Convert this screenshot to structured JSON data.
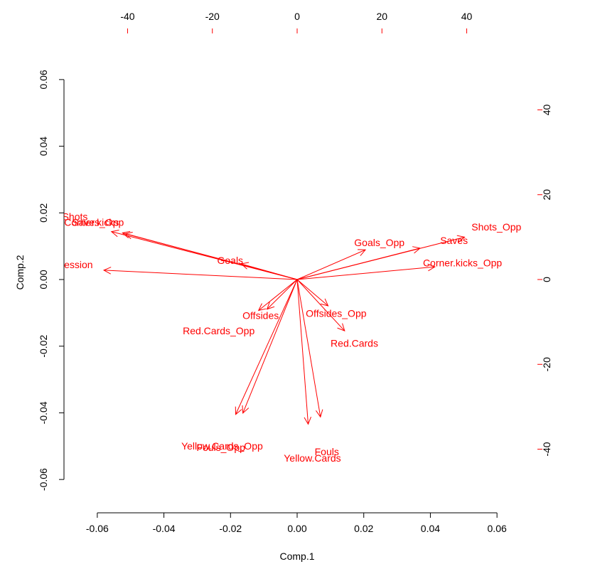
{
  "chart_data": {
    "type": "biplot",
    "xlabel": "Comp.1",
    "ylabel": "Comp.2",
    "xlim": [
      -0.07,
      0.07
    ],
    "ylim": [
      -0.07,
      0.07
    ],
    "x_ticks": [
      -0.06,
      -0.04,
      -0.02,
      0.0,
      0.02,
      0.04,
      0.06
    ],
    "x_tick_labels": [
      "-0.06",
      "-0.04",
      "-0.02",
      "0.00",
      "0.02",
      "0.04",
      "0.06"
    ],
    "y_ticks": [
      -0.06,
      -0.04,
      -0.02,
      0.0,
      0.02,
      0.04,
      0.06
    ],
    "y_tick_labels": [
      "-0.06",
      "-0.04",
      "-0.02",
      "0.00",
      "0.02",
      "0.04",
      "0.06"
    ],
    "top_axis_lim": [
      -55,
      55
    ],
    "top_ticks": [
      -40,
      -20,
      0,
      20,
      40
    ],
    "top_tick_labels": [
      "-40",
      "-20",
      "0",
      "20",
      "40"
    ],
    "right_axis_lim": [
      -55,
      55
    ],
    "right_ticks": [
      -40,
      -20,
      0,
      20,
      40
    ],
    "right_tick_labels": [
      "-40",
      "-20",
      "0",
      "20",
      "40"
    ],
    "loading_color": "#ff0000",
    "loadings": [
      {
        "name": "Shots",
        "x": -43.8,
        "y": 11.3,
        "lx": -52.4,
        "ly": 14.8
      },
      {
        "name": "Corner.kicks",
        "x": -41.2,
        "y": 11.0,
        "lx": -48.5,
        "ly": 13.5
      },
      {
        "name": "Saves_Opp",
        "x": -40.6,
        "y": 10.8,
        "lx": -47.0,
        "ly": 13.5
      },
      {
        "name": "Possession",
        "x": -45.6,
        "y": 2.2,
        "lx": -54.2,
        "ly": 3.5
      },
      {
        "name": "Goals",
        "x": -13.2,
        "y": 3.7,
        "lx": -15.8,
        "ly": 4.5
      },
      {
        "name": "Goals_Opp",
        "x": 16.1,
        "y": 7.0,
        "lx": 19.4,
        "ly": 8.7
      },
      {
        "name": "Saves",
        "x": 29.0,
        "y": 7.4,
        "lx": 37.0,
        "ly": 9.2
      },
      {
        "name": "Shots_Opp",
        "x": 39.5,
        "y": 10.0,
        "lx": 47.0,
        "ly": 12.4
      },
      {
        "name": "Corner.kicks_Opp",
        "x": 32.5,
        "y": 3.0,
        "lx": 39.0,
        "ly": 3.9
      },
      {
        "name": "Offsides",
        "x": -7.1,
        "y": -7.0,
        "lx": -8.6,
        "ly": -8.5
      },
      {
        "name": "Offsides_Opp",
        "x": 7.3,
        "y": -6.2,
        "lx": 9.2,
        "ly": -8.0
      },
      {
        "name": "Red.Cards",
        "x": 11.2,
        "y": -12.1,
        "lx": 13.5,
        "ly": -15.0
      },
      {
        "name": "Red.Cards_Opp",
        "x": -9.1,
        "y": -7.3,
        "lx": -18.5,
        "ly": -12.1
      },
      {
        "name": "Yellow.Cards_Opp",
        "x": -14.5,
        "y": -31.8,
        "lx": -17.7,
        "ly": -39.2
      },
      {
        "name": "Fouls_Opp",
        "x": -12.8,
        "y": -31.5,
        "lx": -18.0,
        "ly": -39.6
      },
      {
        "name": "Fouls",
        "x": 5.5,
        "y": -32.4,
        "lx": 7.0,
        "ly": -40.6
      },
      {
        "name": "Yellow.Cards",
        "x": 2.6,
        "y": -34.1,
        "lx": 3.6,
        "ly": -42.1
      }
    ]
  }
}
